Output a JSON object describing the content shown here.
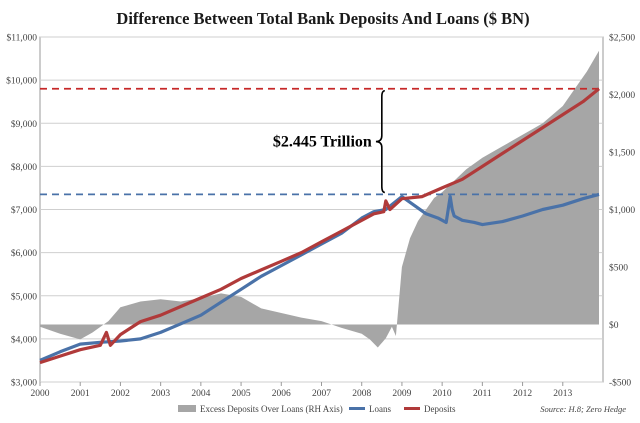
{
  "chart_data": {
    "type": "line",
    "title": "Difference Between Total Bank Deposits And Loans ($ BN)",
    "x_ticks": [
      "2000",
      "2001",
      "2002",
      "2003",
      "2004",
      "2005",
      "2006",
      "2007",
      "2008",
      "2009",
      "2010",
      "2011",
      "2012",
      "2013"
    ],
    "x_range": [
      2000,
      2014
    ],
    "y_left": {
      "ylim": [
        3000,
        11000
      ],
      "ticks": [
        3000,
        4000,
        5000,
        6000,
        7000,
        8000,
        9000,
        10000,
        11000
      ],
      "tick_labels": [
        "$3,000",
        "$4,000",
        "$5,000",
        "$6,000",
        "$7,000",
        "$8,000",
        "$9,000",
        "$10,000",
        "$11,000"
      ]
    },
    "y_right": {
      "ylim": [
        -500,
        2500
      ],
      "ticks": [
        -500,
        0,
        500,
        1000,
        1500,
        2000,
        2500
      ],
      "tick_labels": [
        "-$500",
        "$0",
        "$500",
        "$1,000",
        "$1,500",
        "$2,000",
        "$2,500"
      ]
    },
    "grid": true,
    "legend_position": "bottom",
    "series": [
      {
        "name": "Excess Deposits Over Loans (RH Axis)",
        "kind": "area",
        "axis": "right",
        "color": "#a6a6a6",
        "x": [
          2000.0,
          2000.5,
          2001.0,
          2001.3,
          2001.7,
          2002.0,
          2002.5,
          2003.0,
          2003.5,
          2004.0,
          2004.5,
          2005.0,
          2005.5,
          2006.0,
          2006.5,
          2007.0,
          2007.5,
          2008.0,
          2008.2,
          2008.4,
          2008.6,
          2008.75,
          2008.85,
          2009.0,
          2009.2,
          2009.4,
          2009.6,
          2009.8,
          2010.0,
          2010.3,
          2010.6,
          2011.0,
          2011.5,
          2012.0,
          2012.5,
          2013.0,
          2013.3,
          2013.6,
          2013.9
        ],
        "values": [
          -20,
          -80,
          -130,
          -70,
          30,
          150,
          200,
          220,
          200,
          230,
          270,
          240,
          140,
          100,
          60,
          30,
          -30,
          -80,
          -130,
          -200,
          -120,
          -20,
          -100,
          500,
          750,
          900,
          1000,
          1100,
          1150,
          1250,
          1350,
          1450,
          1550,
          1650,
          1750,
          1900,
          2050,
          2200,
          2380
        ]
      },
      {
        "name": "Loans",
        "kind": "line",
        "axis": "left",
        "color": "#4a72a8",
        "x": [
          2000.0,
          2000.5,
          2001.0,
          2001.5,
          2002.0,
          2002.5,
          2003.0,
          2003.5,
          2004.0,
          2004.5,
          2005.0,
          2005.5,
          2006.0,
          2006.5,
          2007.0,
          2007.5,
          2008.0,
          2008.3,
          2008.6,
          2008.8,
          2009.0,
          2009.3,
          2009.6,
          2009.9,
          2010.1,
          2010.2,
          2010.25,
          2010.3,
          2010.5,
          2010.8,
          2011.0,
          2011.5,
          2012.0,
          2012.5,
          2013.0,
          2013.5,
          2013.9
        ],
        "values": [
          3500,
          3700,
          3880,
          3920,
          3950,
          4000,
          4150,
          4350,
          4550,
          4850,
          5150,
          5450,
          5700,
          5950,
          6200,
          6450,
          6800,
          6950,
          7000,
          7150,
          7300,
          7100,
          6900,
          6800,
          6700,
          7300,
          7000,
          6850,
          6750,
          6700,
          6650,
          6720,
          6850,
          7000,
          7100,
          7250,
          7350
        ]
      },
      {
        "name": "Deposits",
        "kind": "line",
        "axis": "left",
        "color": "#b03a3a",
        "x": [
          2000.0,
          2000.5,
          2001.0,
          2001.5,
          2001.65,
          2001.75,
          2002.0,
          2002.5,
          2003.0,
          2003.5,
          2004.0,
          2004.5,
          2005.0,
          2005.5,
          2006.0,
          2006.5,
          2007.0,
          2007.5,
          2008.0,
          2008.3,
          2008.55,
          2008.6,
          2008.7,
          2009.0,
          2009.5,
          2010.0,
          2010.5,
          2011.0,
          2011.5,
          2012.0,
          2012.5,
          2013.0,
          2013.5,
          2013.9
        ],
        "values": [
          3450,
          3600,
          3750,
          3850,
          4150,
          3850,
          4100,
          4400,
          4550,
          4750,
          4950,
          5150,
          5400,
          5600,
          5800,
          6000,
          6250,
          6500,
          6750,
          6900,
          6950,
          7200,
          7000,
          7250,
          7300,
          7500,
          7700,
          8000,
          8300,
          8600,
          8900,
          9200,
          9500,
          9800
        ]
      }
    ],
    "reference_lines": [
      {
        "axis": "left",
        "value": 9800,
        "color": "#c62828",
        "style": "dashed"
      },
      {
        "axis": "left",
        "value": 7350,
        "color": "#4a72a8",
        "style": "dashed"
      }
    ],
    "annotation": {
      "text": "$2.445 Trillion",
      "between": [
        9800,
        7350
      ],
      "x": 2008.5
    },
    "source": "Source: H.8; Zero Hedge"
  }
}
